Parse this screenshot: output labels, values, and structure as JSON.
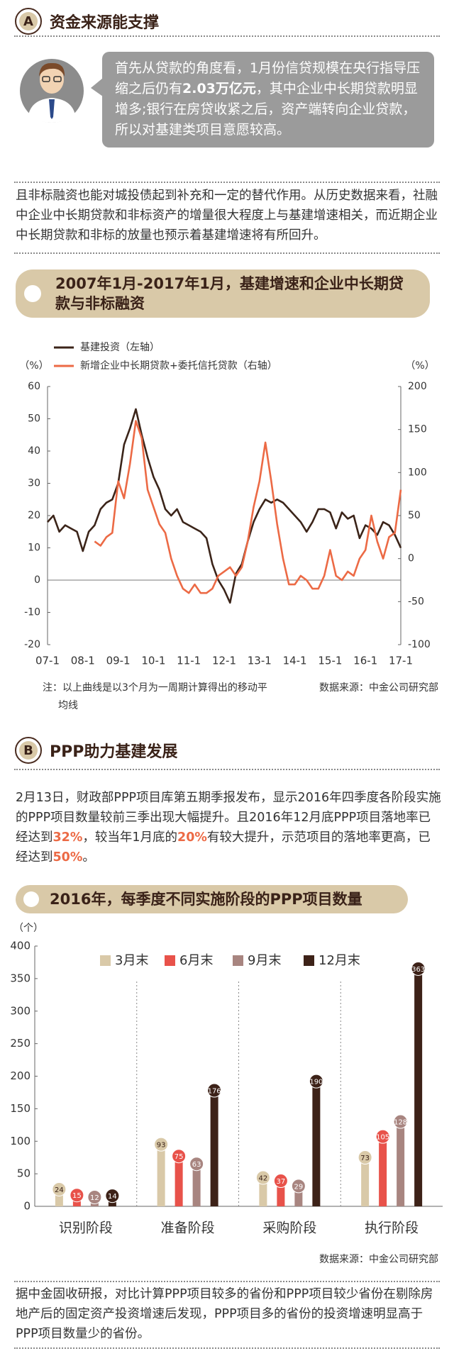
{
  "section_a": {
    "badge": "A",
    "title": "资金来源能支撑"
  },
  "quote": [
    "首先从贷款的角度看，1月份信贷规模在央行指导压缩之后仍有",
    "2.03万亿元",
    "，其中企业中长期贷款明显增多;银行在房贷收紧之后，资产端转向企业贷款，所以对基建类项目意愿较高。"
  ],
  "paragraph_1": "且非标融资也能对城投债起到补充和一定的替代作用。从历史数据来看，社融中企业中长期贷款和非标资产的增量很大程度上与基建增速相关，而近期企业中长期贷款和非标的放量也预示着基建增速将有所回升。",
  "section_b": {
    "badge": "B",
    "title": "PPP助力基建发展"
  },
  "paragraph_2": [
    "2月13日，财政部PPP项目库第五期季报发布，显示2016年四季度各阶段实施的PPP项目数量较前三季出现大幅提升。且2016年12月底PPP项目落地率已经达到",
    "32%",
    "，较当年1月底的",
    "20%",
    "有较大提升，示范项目的落地率更高，已经达到",
    "50%",
    "。"
  ],
  "paragraph_3": "据中金固收研报，对比计算PPP项目较多的省份和PPP项目较少省份在剔除房地产后的固定资产投资增速后发现，PPP项目多的省份的投资增速明显高于PPP项目数量少的省份。",
  "chart_data": [
    {
      "type": "line",
      "title": "2007年1月-2017年1月，基建增速和企业中长期贷款与非标融资",
      "y_unit": "（%）",
      "y2_unit": "（%）",
      "categories": [
        "07-1",
        null,
        null,
        null,
        null,
        null,
        "08-1",
        null,
        null,
        null,
        null,
        null,
        "09-1",
        null,
        null,
        null,
        null,
        null,
        "10-1",
        null,
        null,
        null,
        null,
        null,
        "11-1",
        null,
        null,
        null,
        null,
        null,
        "12-1",
        null,
        null,
        null,
        null,
        null,
        "13-1",
        null,
        null,
        null,
        null,
        null,
        "14-1",
        null,
        null,
        null,
        null,
        null,
        "15-1",
        null,
        null,
        null,
        null,
        null,
        "16-1",
        null,
        null,
        null,
        null,
        null,
        "17-1"
      ],
      "series": [
        {
          "name": "基建投资（左轴）",
          "color": "#3b2419",
          "values": [
            18,
            20,
            15,
            17,
            16,
            15,
            9,
            15,
            17,
            22,
            24,
            25,
            30,
            42,
            47,
            53,
            45,
            38,
            32,
            28,
            22,
            20,
            22,
            18,
            17,
            16,
            15,
            13,
            5,
            0,
            -3,
            -7,
            2,
            5,
            12,
            18,
            22,
            25,
            24,
            25,
            24,
            22,
            20,
            18,
            15,
            18,
            22,
            22,
            21,
            16,
            21,
            19,
            20,
            13,
            17,
            16,
            14,
            18,
            17,
            14,
            10
          ]
        },
        {
          "name": "新增企业中长期贷款+委托信托贷款（右轴）",
          "color": "#ec6a45",
          "axis": "y2",
          "values": [
            null,
            null,
            null,
            null,
            null,
            null,
            null,
            null,
            20,
            15,
            25,
            30,
            90,
            70,
            110,
            160,
            140,
            80,
            60,
            40,
            30,
            0,
            -20,
            -35,
            -40,
            -30,
            -40,
            -40,
            -35,
            -20,
            -15,
            -10,
            -20,
            -10,
            20,
            60,
            90,
            135,
            90,
            40,
            0,
            -30,
            -30,
            -20,
            -25,
            -35,
            -35,
            -20,
            10,
            -20,
            -25,
            -15,
            -20,
            0,
            10,
            50,
            20,
            0,
            25,
            30,
            80
          ]
        }
      ],
      "ylim": [
        -20,
        60
      ],
      "yticks": [
        -20,
        -10,
        0,
        10,
        20,
        30,
        40,
        50,
        60
      ],
      "y2lim": [
        -100,
        200
      ],
      "y2ticks": [
        -100,
        -50,
        0,
        50,
        100,
        150,
        200
      ],
      "note": "注：以上曲线是以3个月为一周期计算得出的移动平均线",
      "source": "数据来源：中金公司研究部"
    },
    {
      "type": "bar",
      "title": "2016年，每季度不同实施阶段的PPP项目数量",
      "y_unit": "（个）",
      "categories": [
        "识别阶段",
        "准备阶段",
        "采购阶段",
        "执行阶段"
      ],
      "series": [
        {
          "name": "3月末",
          "color": "#d9c9a8",
          "values": [
            24,
            93,
            42,
            73
          ]
        },
        {
          "name": "6月末",
          "color": "#e8524a",
          "values": [
            15,
            75,
            37,
            105
          ]
        },
        {
          "name": "9月末",
          "color": "#a88580",
          "values": [
            12,
            63,
            29,
            128
          ]
        },
        {
          "name": "12月末",
          "color": "#3d2218",
          "values": [
            14,
            176,
            190,
            363
          ]
        }
      ],
      "ylim": [
        0,
        400
      ],
      "yticks": [
        0,
        50,
        100,
        150,
        200,
        250,
        300,
        350,
        400
      ],
      "source": "数据来源：中金公司研究部"
    }
  ]
}
